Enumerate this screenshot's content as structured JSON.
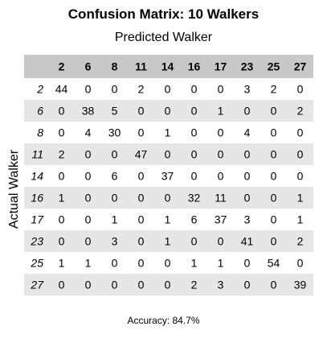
{
  "chart_data": {
    "type": "heatmap",
    "title": "Confusion Matrix: 10 Walkers",
    "xlabel": "Predicted Walker",
    "ylabel": "Actual Walker",
    "columns": [
      "2",
      "6",
      "8",
      "11",
      "14",
      "16",
      "17",
      "23",
      "25",
      "27"
    ],
    "rows": [
      "2",
      "6",
      "8",
      "11",
      "14",
      "16",
      "17",
      "23",
      "25",
      "27"
    ],
    "values": [
      [
        44,
        0,
        0,
        2,
        0,
        0,
        0,
        3,
        2,
        0
      ],
      [
        0,
        38,
        5,
        0,
        0,
        0,
        1,
        0,
        0,
        2
      ],
      [
        0,
        4,
        30,
        0,
        1,
        0,
        0,
        4,
        0,
        0
      ],
      [
        2,
        0,
        0,
        47,
        0,
        0,
        0,
        0,
        0,
        0
      ],
      [
        0,
        0,
        6,
        0,
        37,
        0,
        0,
        0,
        0,
        0
      ],
      [
        1,
        0,
        0,
        0,
        0,
        32,
        11,
        0,
        0,
        1
      ],
      [
        0,
        0,
        1,
        0,
        1,
        6,
        37,
        3,
        0,
        1
      ],
      [
        0,
        0,
        3,
        0,
        1,
        0,
        0,
        41,
        0,
        2
      ],
      [
        1,
        1,
        0,
        0,
        0,
        1,
        1,
        0,
        54,
        0
      ],
      [
        0,
        0,
        0,
        0,
        0,
        2,
        3,
        0,
        0,
        39
      ]
    ],
    "footer": "Accuracy: 84.7%",
    "header_color": "#c8c8c8",
    "stripe_color": "#e6e6e6",
    "background_color": "#ffffff"
  }
}
